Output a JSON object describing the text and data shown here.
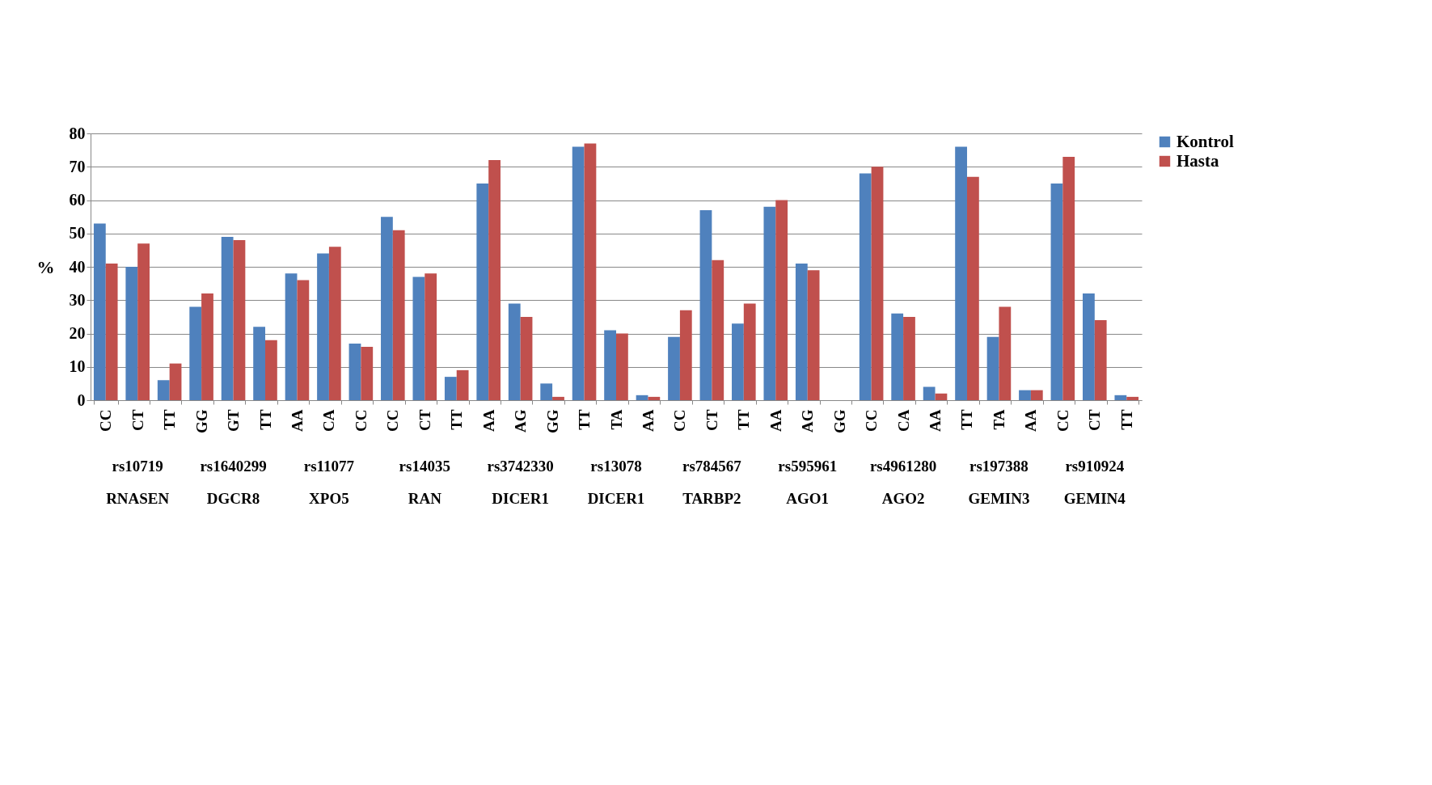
{
  "chart_data": {
    "type": "bar",
    "ylabel": "%",
    "categories": [
      "CC",
      "CT",
      "TT",
      "GG",
      "GT",
      "TT",
      "AA",
      "CA",
      "CC",
      "CC",
      "CT",
      "TT",
      "AA",
      "AG",
      "GG",
      "TT",
      "TA",
      "AA",
      "CC",
      "CT",
      "TT",
      "AA",
      "AG",
      "GG",
      "CC",
      "CA",
      "AA",
      "TT",
      "TA",
      "AA",
      "CC",
      "CT",
      "TT"
    ],
    "series": [
      {
        "name": "Kontrol",
        "color": "#4f81bd",
        "values": [
          53,
          40,
          6,
          28,
          49,
          22,
          38,
          44,
          17,
          55,
          37,
          7,
          65,
          29,
          5,
          76,
          21,
          1.5,
          19,
          57,
          23,
          58,
          41,
          0,
          68,
          26,
          4,
          76,
          19,
          3,
          65,
          32,
          1.5
        ]
      },
      {
        "name": "Hasta",
        "color": "#c0504d",
        "values": [
          41,
          47,
          11,
          32,
          48,
          18,
          36,
          46,
          16,
          51,
          38,
          9,
          72,
          25,
          1,
          77,
          20,
          1,
          27,
          42,
          29,
          60,
          39,
          0,
          70,
          25,
          2,
          67,
          28,
          3,
          73,
          24,
          1
        ]
      }
    ],
    "annotations": [
      "rs10719",
      "rs1640299",
      "rs11077",
      "rs14035",
      "rs3742330",
      "rs13078",
      "rs784567",
      "rs595961",
      "rs4961280",
      "rs197388",
      "rs910924",
      "RNASEN",
      "DGCR8",
      "XPO5",
      "RAN",
      "DICER1",
      "DICER1",
      "TARBP2",
      "AGO1",
      "AGO2",
      "GEMIN3",
      "GEMIN4"
    ],
    "ylim": [
      0,
      80
    ],
    "yticks": [
      0,
      10,
      20,
      30,
      40,
      50,
      60,
      70,
      80
    ],
    "grid": "y",
    "legend": "right"
  }
}
